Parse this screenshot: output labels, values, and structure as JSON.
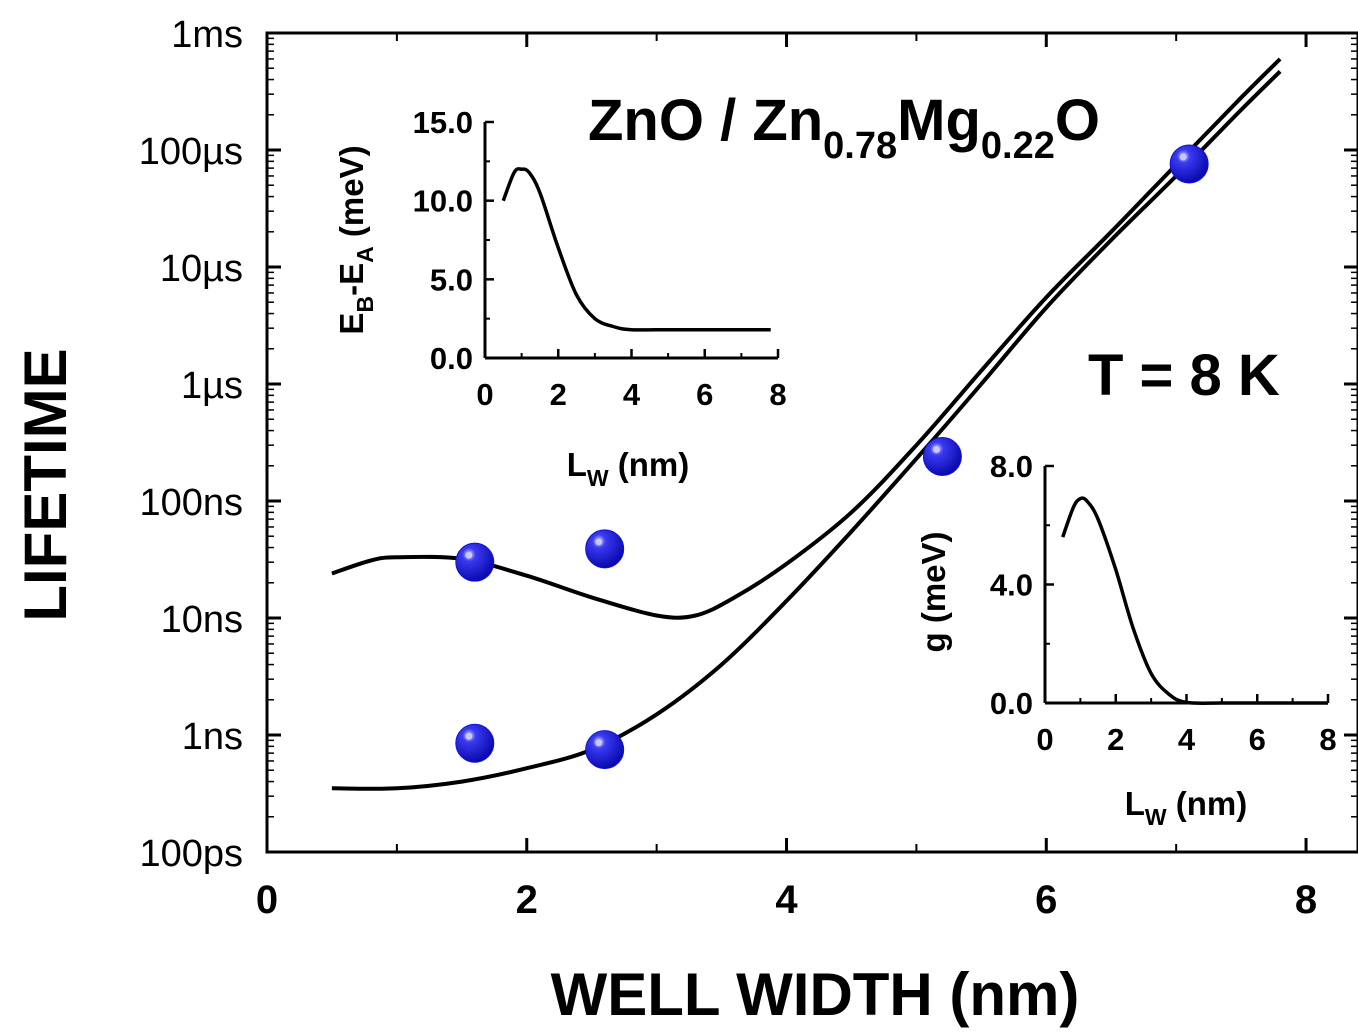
{
  "chart_data": [
    {
      "type": "line",
      "title": "ZnO / Zn0.78Mg0.22O",
      "xlabel": "WELL WIDTH (nm)",
      "ylabel": "LIFETIME",
      "xlim": [
        0,
        8.4
      ],
      "x_ticks": [
        "0",
        "2",
        "4",
        "6",
        "8"
      ],
      "x_tick_values": [
        0,
        2,
        4,
        6,
        8
      ],
      "y_scale": "log",
      "y_unit": "s",
      "ylim": [
        1e-10,
        0.001
      ],
      "y_ticks": [
        "100ps",
        "1ns",
        "10ns",
        "100ns",
        "1µs",
        "10µs",
        "100µs",
        "1ms"
      ],
      "y_tick_values": [
        1e-10,
        1e-09,
        1e-08,
        1e-07,
        1e-06,
        1e-05,
        0.0001,
        0.001
      ],
      "annotations": [
        "T = 8 K"
      ],
      "series": [
        {
          "kind": "curve",
          "x": [
            0.5,
            0.8,
            1.0,
            1.5,
            2.0,
            2.5,
            3.0,
            3.3,
            3.6,
            4.0,
            4.5,
            5.0,
            5.5,
            6.0,
            6.5,
            7.0,
            7.5,
            7.8
          ],
          "y": [
            2.4e-08,
            3.1e-08,
            3.3e-08,
            3.2e-08,
            2.3e-08,
            1.5e-08,
            1.05e-08,
            1.05e-08,
            1.5e-08,
            2.9e-08,
            8e-08,
            3e-07,
            1.3e-06,
            5.5e-06,
            2e-05,
            7.5e-05,
            0.00028,
            0.0006
          ]
        },
        {
          "kind": "curve",
          "x": [
            0.5,
            1.0,
            1.5,
            2.0,
            2.5,
            3.0,
            3.5,
            4.0,
            4.5,
            5.0,
            5.5,
            6.0,
            6.5,
            7.0,
            7.5,
            7.8
          ],
          "y": [
            3.5e-10,
            3.5e-10,
            4e-10,
            5.2e-10,
            7.5e-10,
            1.5e-09,
            4e-09,
            1.4e-08,
            5.5e-08,
            2.3e-07,
            1e-06,
            4.5e-06,
            1.7e-05,
            6e-05,
            0.00022,
            0.00047
          ]
        },
        {
          "kind": "points",
          "x": [
            1.6,
            2.6,
            1.6,
            2.6,
            5.2,
            7.1
          ],
          "y": [
            3e-08,
            3.9e-08,
            8.5e-10,
            7.5e-10,
            2.4e-07,
            7.6e-05
          ]
        }
      ]
    },
    {
      "type": "line",
      "xlabel": "L",
      "xlabel_sub": "W",
      "xlabel_unit": " (nm)",
      "ylabel": "E",
      "ylabel_sub1": "B",
      "ylabel_mid": "-E",
      "ylabel_sub2": "A",
      "ylabel_unit": " (meV)",
      "xlim": [
        0,
        8
      ],
      "ylim": [
        0,
        15
      ],
      "x_ticks": [
        "0",
        "2",
        "4",
        "6",
        "8"
      ],
      "x_tick_values": [
        0,
        2,
        4,
        6,
        8
      ],
      "y_ticks": [
        "0.0",
        "5.0",
        "10.0",
        "15.0"
      ],
      "y_tick_values": [
        0,
        5,
        10,
        15
      ],
      "x": [
        0.5,
        0.8,
        1.0,
        1.2,
        1.5,
        2.0,
        2.5,
        3.0,
        3.5,
        4.0,
        5.0,
        6.0,
        7.0,
        7.8
      ],
      "y": [
        10.0,
        11.8,
        12.0,
        11.8,
        10.5,
        7.0,
        4.0,
        2.5,
        2.0,
        1.8,
        1.8,
        1.8,
        1.8,
        1.8
      ]
    },
    {
      "type": "line",
      "xlabel": "L",
      "xlabel_sub": "W",
      "xlabel_unit": " (nm)",
      "ylabel": "g (meV)",
      "xlim": [
        0,
        8
      ],
      "ylim": [
        0,
        8
      ],
      "x_ticks": [
        "0",
        "2",
        "4",
        "6",
        "8"
      ],
      "x_tick_values": [
        0,
        2,
        4,
        6,
        8
      ],
      "y_ticks": [
        "0.0",
        "4.0",
        "8.0"
      ],
      "y_tick_values": [
        0,
        4,
        8
      ],
      "x": [
        0.5,
        0.8,
        1.0,
        1.2,
        1.5,
        2.0,
        2.5,
        3.0,
        3.5,
        4.0,
        5.0,
        6.0,
        7.0,
        8.0
      ],
      "y": [
        5.6,
        6.6,
        6.9,
        6.8,
        6.2,
        4.5,
        2.5,
        1.0,
        0.3,
        0.02,
        0.0,
        0.0,
        0.0,
        0.0
      ]
    }
  ],
  "title_parts": {
    "a": "ZnO / Zn",
    "sub1": "0.78",
    "b": "Mg",
    "sub2": "0.22",
    "c": "O"
  },
  "colors": {
    "axis": "#000000",
    "curve": "#000000",
    "marker": "#1010e0",
    "marker_highlight": "#c8c8ff"
  }
}
